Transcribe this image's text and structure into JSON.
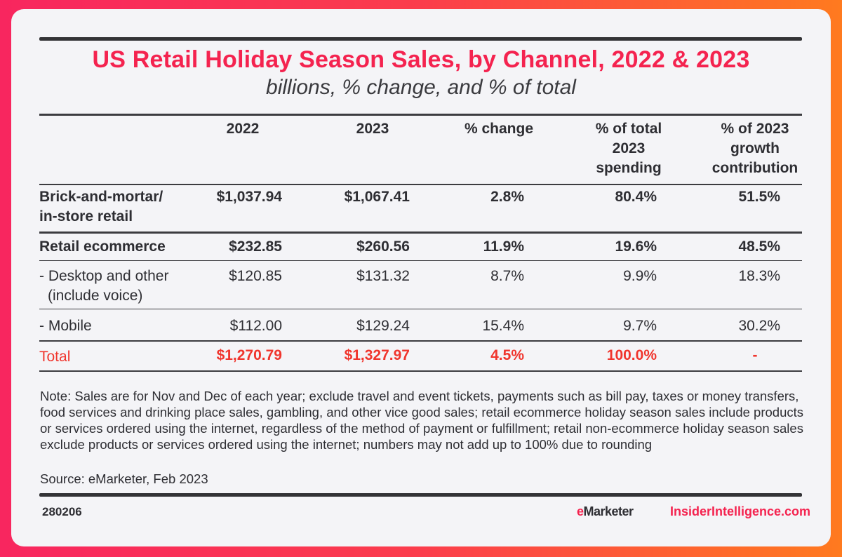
{
  "title": "US Retail Holiday Season Sales, by Channel, 2022 & 2023",
  "subtitle": "billions, % change, and % of total",
  "colors": {
    "accent": "#f4234f",
    "total_row": "#f0352d",
    "text": "#2e2e33"
  },
  "chart_data": {
    "type": "table",
    "columns": [
      "",
      "2022",
      "2023",
      "% change",
      "% of total 2023 spending",
      "% of 2023 growth contribution"
    ],
    "header_lines": {
      "c2022": "2022",
      "c2023": "2023",
      "cchange": "% change",
      "cpct": [
        "% of total",
        "2023",
        "spending"
      ],
      "cgrowth": [
        "% of 2023",
        "growth",
        "contribution"
      ]
    },
    "rows": [
      {
        "label": [
          "Brick-and-mortar/",
          "in-store retail"
        ],
        "v2022": "$1,037.94",
        "v2023": "$1,067.41",
        "change": "2.8%",
        "pct_total": "80.4%",
        "growth": "51.5%"
      },
      {
        "label": [
          "Retail ecommerce"
        ],
        "v2022": "$232.85",
        "v2023": "$260.56",
        "change": "11.9%",
        "pct_total": "19.6%",
        "growth": "48.5%"
      },
      {
        "label": [
          "- Desktop and other",
          "(include voice)"
        ],
        "v2022": "$120.85",
        "v2023": "$131.32",
        "change": "8.7%",
        "pct_total": "9.9%",
        "growth": "18.3%"
      },
      {
        "label": [
          "- Mobile"
        ],
        "v2022": "$112.00",
        "v2023": "$129.24",
        "change": "15.4%",
        "pct_total": "9.7%",
        "growth": "30.2%"
      },
      {
        "label": [
          "Total"
        ],
        "v2022": "$1,270.79",
        "v2023": "$1,327.97",
        "change": "4.5%",
        "pct_total": "100.0%",
        "growth": "-"
      }
    ]
  },
  "note": "Note: Sales are for Nov and Dec of each year; exclude travel and event tickets, payments such as bill pay, taxes or money transfers, food services and drinking  place sales, gambling, and other vice good sales; retail ecommerce holiday season sales include products or services ordered using the internet, regardless of the method of payment or fulfillment; retail non-ecommerce holiday season sales exclude products or services ordered using the internet; numbers may not add up to 100% due to rounding",
  "source": "Source: eMarketer, Feb 2023",
  "footer": {
    "id": "280206",
    "brand_prefix": "e",
    "brand_rest": "Marketer",
    "site": "InsiderIntelligence.com"
  }
}
